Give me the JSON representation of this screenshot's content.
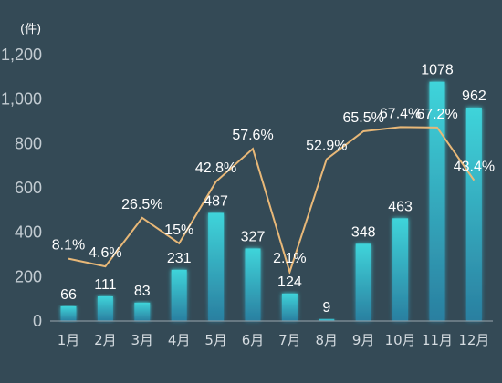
{
  "chart_data": {
    "type": "bar",
    "unit_label": "(件)",
    "categories": [
      "1月",
      "2月",
      "3月",
      "4月",
      "5月",
      "6月",
      "7月",
      "8月",
      "9月",
      "10月",
      "11月",
      "12月"
    ],
    "series": [
      {
        "values": [
          66,
          111,
          83,
          231,
          487,
          327,
          124,
          9,
          348,
          463,
          1078,
          962
        ]
      },
      {
        "values": [
          8.1,
          4.6,
          26.5,
          15,
          42.8,
          57.6,
          2.1,
          52.9,
          65.5,
          67.4,
          67.2,
          43.4
        ],
        "labels": [
          "8.1%",
          "4.6%",
          "26.5%",
          "15%",
          "42.8%",
          "57.6%",
          "2.1%",
          "52.9%",
          "65.5%",
          "67.4%",
          "67.2%",
          "43.4%"
        ]
      }
    ],
    "yticks": [
      "0",
      "200",
      "400",
      "600",
      "800",
      "1,000",
      "1,200"
    ],
    "ylim": [
      0,
      1200
    ],
    "secondary_ylim": [
      -20,
      100
    ],
    "grid": false,
    "colors": {
      "bar_top": "#3fd4da",
      "bar_bottom": "#2a7fa0",
      "line": "#e8b878",
      "axis": "#9aa6ad"
    }
  }
}
